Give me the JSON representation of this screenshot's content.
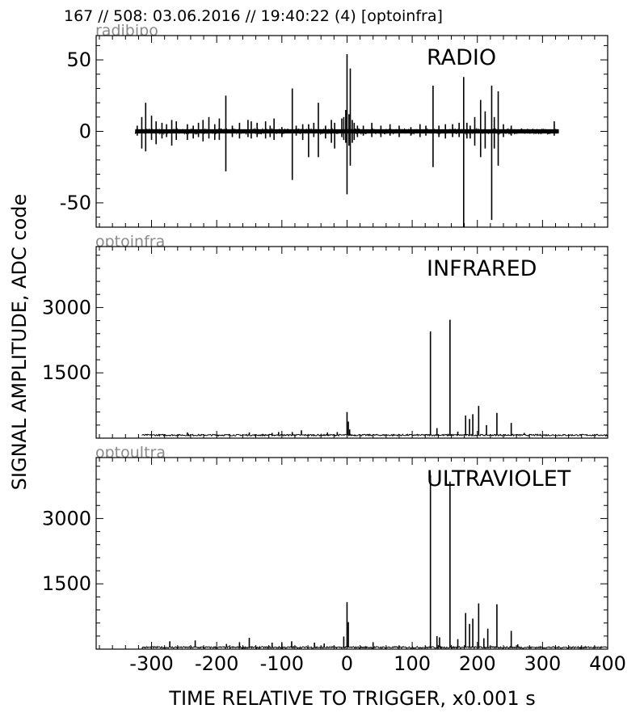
{
  "header": {
    "title": "167 // 508:   03.06.2016 // 19:40:22 (4)  [optoinfra]"
  },
  "figure": {
    "ylabel": "SIGNAL AMPLITUDE,  ADC code",
    "xlabel": "TIME RELATIVE TO TRIGGER,   x0.001 s"
  },
  "chart_data": [
    {
      "type": "line",
      "subtitle": "radibipo",
      "annotation": "RADIO",
      "xlim": [
        -385,
        400
      ],
      "ylim": [
        -67,
        67
      ],
      "yticks": [
        50,
        0,
        -50
      ],
      "ytick_labels": [
        "50",
        "0",
        "-50"
      ],
      "xticks": [
        -300,
        -200,
        -100,
        0,
        100,
        200,
        300,
        400
      ],
      "xtick_labels": [],
      "baseline": 0,
      "noise": 1.8,
      "data_range": [
        -325,
        325
      ],
      "spikes": [
        {
          "x": -322,
          "ymax": 4,
          "ymin": -3
        },
        {
          "x": -315,
          "ymax": 10,
          "ymin": -12
        },
        {
          "x": -309,
          "ymax": 20,
          "ymin": -14
        },
        {
          "x": -300,
          "ymax": 11,
          "ymin": -6
        },
        {
          "x": -293,
          "ymax": 7,
          "ymin": -9
        },
        {
          "x": -284,
          "ymax": 6,
          "ymin": -5
        },
        {
          "x": -277,
          "ymax": 5,
          "ymin": -4
        },
        {
          "x": -269,
          "ymax": 8,
          "ymin": -10
        },
        {
          "x": -262,
          "ymax": 7,
          "ymin": -6
        },
        {
          "x": -245,
          "ymax": 5,
          "ymin": -6
        },
        {
          "x": -236,
          "ymax": 4,
          "ymin": -5
        },
        {
          "x": -228,
          "ymax": 6,
          "ymin": -4
        },
        {
          "x": -221,
          "ymax": 8,
          "ymin": -7
        },
        {
          "x": -212,
          "ymax": 10,
          "ymin": -5
        },
        {
          "x": -203,
          "ymax": 5,
          "ymin": -6
        },
        {
          "x": -196,
          "ymax": 9,
          "ymin": -6
        },
        {
          "x": -186,
          "ymax": 25,
          "ymin": -28
        },
        {
          "x": -176,
          "ymax": 4,
          "ymin": -4
        },
        {
          "x": -165,
          "ymax": 6,
          "ymin": -5
        },
        {
          "x": -152,
          "ymax": 8,
          "ymin": -4
        },
        {
          "x": -147,
          "ymax": 7,
          "ymin": -5
        },
        {
          "x": -138,
          "ymax": 6,
          "ymin": -4
        },
        {
          "x": -125,
          "ymax": 7,
          "ymin": -5
        },
        {
          "x": -118,
          "ymax": 4,
          "ymin": -4
        },
        {
          "x": -112,
          "ymax": 9,
          "ymin": -6
        },
        {
          "x": -100,
          "ymax": 3,
          "ymin": -4
        },
        {
          "x": -84,
          "ymax": 30,
          "ymin": -34
        },
        {
          "x": -78,
          "ymax": 4,
          "ymin": -3
        },
        {
          "x": -68,
          "ymax": 5,
          "ymin": -6
        },
        {
          "x": -59,
          "ymax": 5,
          "ymin": -18
        },
        {
          "x": -51,
          "ymax": 6,
          "ymin": -4
        },
        {
          "x": -44,
          "ymax": 20,
          "ymin": -18
        },
        {
          "x": -33,
          "ymax": 4,
          "ymin": -5
        },
        {
          "x": -24,
          "ymax": 8,
          "ymin": -8
        },
        {
          "x": -19,
          "ymax": 6,
          "ymin": -12
        },
        {
          "x": -8,
          "ymax": 9,
          "ymin": -4
        },
        {
          "x": -5,
          "ymax": 10,
          "ymin": -6
        },
        {
          "x": -2,
          "ymax": 15,
          "ymin": -8
        },
        {
          "x": 0,
          "ymax": 54,
          "ymin": -44
        },
        {
          "x": 3,
          "ymax": 12,
          "ymin": -10
        },
        {
          "x": 5,
          "ymax": 44,
          "ymin": -24
        },
        {
          "x": 8,
          "ymax": 8,
          "ymin": -8
        },
        {
          "x": 11,
          "ymax": 6,
          "ymin": -6
        },
        {
          "x": 16,
          "ymax": 4,
          "ymin": -4
        },
        {
          "x": 25,
          "ymax": 4,
          "ymin": -3
        },
        {
          "x": 38,
          "ymax": 6,
          "ymin": -4
        },
        {
          "x": 52,
          "ymax": 4,
          "ymin": -4
        },
        {
          "x": 66,
          "ymax": 5,
          "ymin": -3
        },
        {
          "x": 80,
          "ymax": 4,
          "ymin": -4
        },
        {
          "x": 98,
          "ymax": 3,
          "ymin": -3
        },
        {
          "x": 112,
          "ymax": 5,
          "ymin": -4
        },
        {
          "x": 121,
          "ymax": 4,
          "ymin": -3
        },
        {
          "x": 132,
          "ymax": 32,
          "ymin": -25
        },
        {
          "x": 141,
          "ymax": 4,
          "ymin": -4
        },
        {
          "x": 151,
          "ymax": 5,
          "ymin": -5
        },
        {
          "x": 162,
          "ymax": 5,
          "ymin": -4
        },
        {
          "x": 172,
          "ymax": 6,
          "ymin": -4
        },
        {
          "x": 179,
          "ymax": 38,
          "ymin": -67
        },
        {
          "x": 184,
          "ymax": 6,
          "ymin": -5
        },
        {
          "x": 189,
          "ymax": 4,
          "ymin": -5
        },
        {
          "x": 196,
          "ymax": 10,
          "ymin": -10
        },
        {
          "x": 205,
          "ymax": 22,
          "ymin": -18
        },
        {
          "x": 212,
          "ymax": 14,
          "ymin": -12
        },
        {
          "x": 222,
          "ymax": 32,
          "ymin": -62
        },
        {
          "x": 226,
          "ymax": 10,
          "ymin": -12
        },
        {
          "x": 232,
          "ymax": 28,
          "ymin": -24
        },
        {
          "x": 240,
          "ymax": 5,
          "ymin": -4
        },
        {
          "x": 252,
          "ymax": 4,
          "ymin": -3
        },
        {
          "x": 318,
          "ymax": 7,
          "ymin": -3
        }
      ]
    },
    {
      "type": "line",
      "subtitle": "optoinfra",
      "annotation": "INFRARED",
      "xlim": [
        -385,
        400
      ],
      "ylim": [
        0,
        4400
      ],
      "yticks": [
        3000,
        1500
      ],
      "ytick_labels": [
        "3000",
        "1500"
      ],
      "xticks": [
        -300,
        -200,
        -100,
        0,
        100,
        200,
        300,
        400
      ],
      "xtick_labels": [],
      "baseline": 70,
      "noise": 18,
      "data_range": [
        -315,
        400
      ],
      "spikes": [
        {
          "x": -245,
          "ymax": 130
        },
        {
          "x": -150,
          "ymax": 130
        },
        {
          "x": -115,
          "ymax": 120
        },
        {
          "x": -105,
          "ymax": 140
        },
        {
          "x": -84,
          "ymax": 140
        },
        {
          "x": -70,
          "ymax": 180
        },
        {
          "x": -30,
          "ymax": 130
        },
        {
          "x": -15,
          "ymax": 140
        },
        {
          "x": 0,
          "ymax": 600
        },
        {
          "x": 2,
          "ymax": 380
        },
        {
          "x": 4,
          "ymax": 200
        },
        {
          "x": 128,
          "ymax": 2450
        },
        {
          "x": 138,
          "ymax": 230
        },
        {
          "x": 158,
          "ymax": 2720
        },
        {
          "x": 170,
          "ymax": 150
        },
        {
          "x": 182,
          "ymax": 520
        },
        {
          "x": 188,
          "ymax": 440
        },
        {
          "x": 193,
          "ymax": 550
        },
        {
          "x": 202,
          "ymax": 740
        },
        {
          "x": 214,
          "ymax": 300
        },
        {
          "x": 230,
          "ymax": 580
        },
        {
          "x": 252,
          "ymax": 350
        },
        {
          "x": 272,
          "ymax": 120
        }
      ]
    },
    {
      "type": "line",
      "subtitle": "optoultra",
      "annotation": "ULTRAVIOLET",
      "xlim": [
        -385,
        400
      ],
      "ylim": [
        0,
        4400
      ],
      "yticks": [
        3000,
        1500
      ],
      "ytick_labels": [
        "3000",
        "1500"
      ],
      "xticks": [
        -300,
        -200,
        -100,
        0,
        100,
        200,
        300,
        400
      ],
      "xtick_labels": [
        "-300",
        "-200",
        "-100",
        "0",
        "100",
        "200",
        "300",
        "400"
      ],
      "baseline": 40,
      "noise": 20,
      "data_range": [
        -315,
        400
      ],
      "spikes": [
        {
          "x": -272,
          "ymax": 180
        },
        {
          "x": -233,
          "ymax": 200
        },
        {
          "x": -185,
          "ymax": 120
        },
        {
          "x": -165,
          "ymax": 160
        },
        {
          "x": -150,
          "ymax": 260
        },
        {
          "x": -115,
          "ymax": 150
        },
        {
          "x": -100,
          "ymax": 140
        },
        {
          "x": -85,
          "ymax": 180
        },
        {
          "x": -50,
          "ymax": 150
        },
        {
          "x": -35,
          "ymax": 130
        },
        {
          "x": -5,
          "ymax": 290
        },
        {
          "x": 0,
          "ymax": 1080
        },
        {
          "x": 2,
          "ymax": 620
        },
        {
          "x": 40,
          "ymax": 160
        },
        {
          "x": 128,
          "ymax": 4000
        },
        {
          "x": 138,
          "ymax": 300
        },
        {
          "x": 142,
          "ymax": 270
        },
        {
          "x": 158,
          "ymax": 3850
        },
        {
          "x": 170,
          "ymax": 230
        },
        {
          "x": 182,
          "ymax": 830
        },
        {
          "x": 188,
          "ymax": 580
        },
        {
          "x": 193,
          "ymax": 700
        },
        {
          "x": 202,
          "ymax": 1050
        },
        {
          "x": 210,
          "ymax": 250
        },
        {
          "x": 216,
          "ymax": 470
        },
        {
          "x": 230,
          "ymax": 1030
        },
        {
          "x": 252,
          "ymax": 420
        },
        {
          "x": 262,
          "ymax": 110
        }
      ]
    }
  ]
}
